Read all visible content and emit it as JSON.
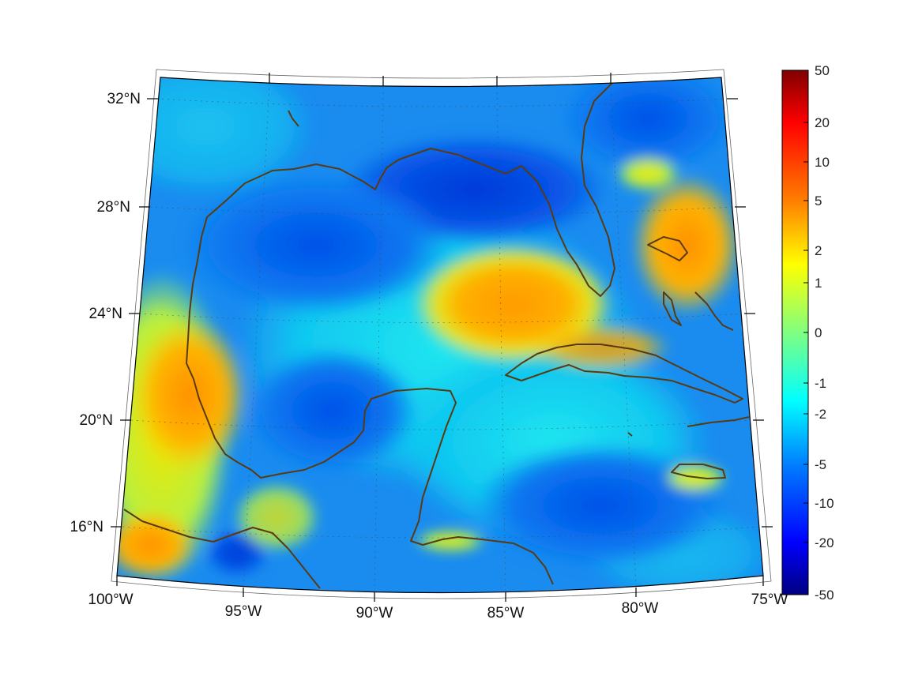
{
  "map": {
    "projection": "conic",
    "region": "Gulf of Mexico and Caribbean",
    "lon_range": [
      -100,
      -75
    ],
    "lat_range": [
      14,
      33
    ],
    "graticule": "dotted",
    "coastline_color": "#5a3a10",
    "lat_labels": [
      "32°N",
      "28°N",
      "24°N",
      "20°N",
      "16°N"
    ],
    "lon_labels": [
      "100°W",
      "95°W",
      "90°W",
      "85°W",
      "80°W",
      "75°W"
    ]
  },
  "colorbar": {
    "colormap": "jet",
    "scale": "symmetric-log",
    "placement": "right",
    "tick_labels": [
      "50",
      "20",
      "10",
      "5",
      "2",
      "1",
      "0",
      "-1",
      "-2",
      "-5",
      "-10",
      "-20",
      "-50"
    ],
    "range": [
      -50,
      50
    ]
  },
  "colors": {
    "background": "#ffffff",
    "frame": "#000000"
  }
}
